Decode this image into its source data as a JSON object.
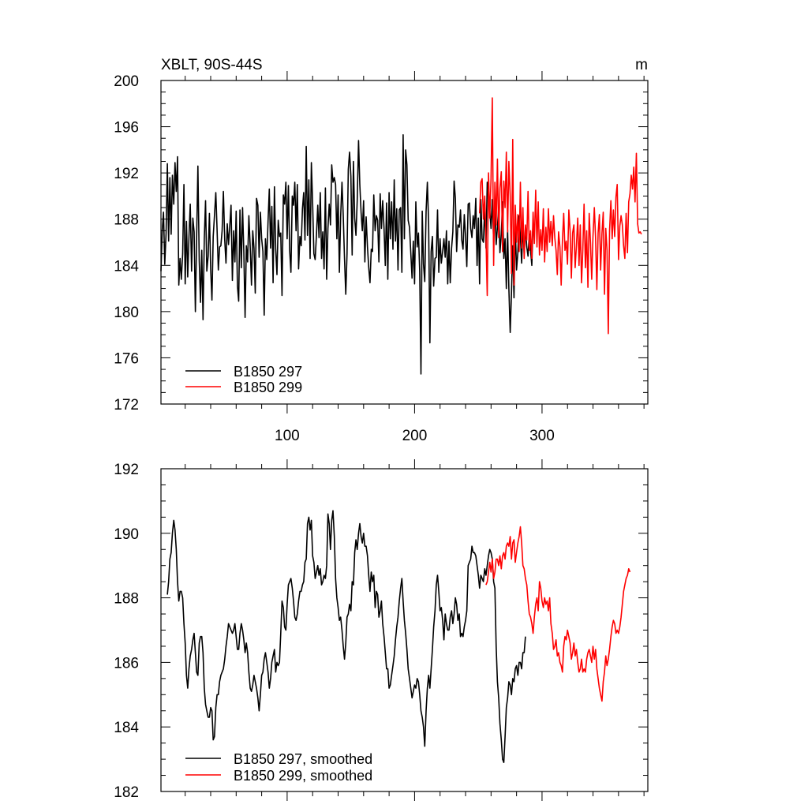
{
  "chart_data": [
    {
      "type": "line",
      "title": "XBLT, 90S-44S",
      "units": "m",
      "xlim": [
        1,
        383
      ],
      "ylim": [
        172,
        200
      ],
      "yticks": [
        172,
        176,
        180,
        184,
        188,
        192,
        196,
        200
      ],
      "xticks": [
        100,
        200,
        300
      ],
      "grid": false,
      "legend_position": "bottom-left",
      "series": [
        {
          "name": "B1850 297",
          "color": "#000000",
          "x_start": 1,
          "values": [
            183.5,
            187.0,
            188.6,
            184.1,
            186.8,
            192.8,
            186.1,
            191.6,
            186.7,
            191.8,
            189.3,
            192.9,
            190.4,
            193.4,
            182.3,
            184.6,
            182.8,
            185.0,
            191.0,
            182.4,
            187.8,
            183.0,
            186.5,
            189.3,
            183.5,
            188.1,
            186.9,
            180.0,
            186.4,
            192.6,
            184.4,
            180.8,
            185.3,
            179.3,
            186.3,
            189.6,
            183.5,
            184.8,
            188.5,
            183.7,
            181.0,
            186.5,
            188.3,
            190.3,
            187.1,
            183.6,
            185.6,
            185.7,
            187.0,
            190.4,
            186.2,
            184.2,
            187.6,
            185.8,
            187.4,
            189.2,
            182.7,
            187.0,
            184.3,
            188.7,
            182.2,
            180.9,
            188.8,
            183.8,
            189.0,
            185.2,
            179.5,
            185.7,
            184.3,
            188.3,
            185.6,
            182.3,
            187.0,
            185.5,
            181.6,
            189.8,
            189.2,
            184.7,
            188.6,
            186.3,
            185.2,
            179.7,
            186.3,
            184.5,
            187.8,
            190.6,
            185.5,
            189.1,
            182.5,
            190.8,
            185.4,
            183.2,
            187.9,
            186.5,
            186.8,
            181.4,
            190.1,
            189.3,
            191.2,
            186.3,
            190.9,
            185.3,
            183.4,
            190.0,
            189.2,
            191.2,
            187.0,
            191.0,
            183.7,
            186.5,
            185.7,
            188.9,
            190.3,
            186.2,
            194.3,
            186.6,
            191.4,
            184.6,
            192.9,
            189.4,
            185.0,
            184.5,
            186.7,
            189.2,
            186.4,
            190.3,
            184.6,
            186.9,
            183.7,
            190.7,
            182.8,
            187.2,
            189.3,
            187.5,
            192.7,
            191.2,
            191.6,
            191.0,
            186.3,
            190.1,
            183.4,
            188.2,
            191.2,
            188.3,
            184.6,
            181.5,
            185.0,
            192.3,
            193.8,
            191.7,
            184.9,
            193.0,
            188.1,
            186.6,
            189.6,
            194.8,
            191.0,
            188.6,
            187.0,
            189.6,
            184.3,
            188.2,
            185.6,
            183.8,
            182.5,
            185.4,
            185.2,
            190.1,
            187.0,
            188.3,
            187.9,
            184.3,
            190.2,
            187.2,
            189.6,
            187.2,
            184.0,
            189.4,
            182.8,
            190.3,
            186.3,
            189.5,
            185.4,
            191.4,
            186.1,
            188.9,
            183.6,
            188.8,
            189.0,
            183.4,
            195.3,
            186.3,
            194.0,
            192.7,
            187.9,
            187.3,
            185.1,
            182.9,
            186.1,
            182.4,
            189.5,
            185.6,
            186.8,
            183.5,
            174.6,
            188.7,
            184.1,
            182.6,
            188.7,
            191.2,
            187.7,
            177.3,
            185.2,
            186.5,
            182.2,
            184.6,
            184.7,
            188.8,
            183.4,
            186.3,
            184.2,
            185.2,
            186.3,
            184.7,
            187.0,
            182.4,
            186.1,
            182.5,
            185.5,
            186.9,
            191.3,
            189.8,
            185.2,
            187.5,
            187.3,
            188.8,
            186.2,
            185.4,
            188.4,
            186.5,
            183.9,
            189.3,
            189.4,
            187.2,
            186.4,
            188.3,
            187.2,
            189.8,
            184.0,
            188.1,
            182.4,
            189.7,
            186.3,
            186.0,
            189.0,
            185.5,
            191.2,
            190.6,
            188.8,
            187.2,
            189.7,
            186.0,
            188.9,
            185.8,
            187.3,
            189.0,
            185.1,
            186.7,
            189.5,
            184.6,
            186.3,
            182.0,
            187.1,
            182.0,
            178.2,
            181.6,
            185.7,
            181.2,
            187.4,
            183.6,
            185.1,
            188.3,
            186.5,
            184.2,
            187.5,
            185.0,
            187.3,
            185.6,
            184.8,
            186.7,
            185.3,
            184.0,
            188.0
          ]
        },
        {
          "name": "B1850 299",
          "color": "#ff0000",
          "x_start": 251,
          "values": [
            188.5,
            191.2,
            191.5,
            188.0,
            190.0,
            186.4,
            181.4,
            192.0,
            188.1,
            191.5,
            198.5,
            184.0,
            191.2,
            187.5,
            193.2,
            186.4,
            190.7,
            192.1,
            185.2,
            191.3,
            189.0,
            193.8,
            186.9,
            193.0,
            190.0,
            183.3,
            194.9,
            182.3,
            189.2,
            186.0,
            188.4,
            185.2,
            191.2,
            185.5,
            189.0,
            184.6,
            187.5,
            186.2,
            190.4,
            185.3,
            187.0,
            184.6,
            188.6,
            185.9,
            190.5,
            185.6,
            189.5,
            184.9,
            187.1,
            185.3,
            188.9,
            184.3,
            187.3,
            185.2,
            188.9,
            186.0,
            187.8,
            185.7,
            188.3,
            186.4,
            185.3,
            183.2,
            186.9,
            185.6,
            182.3,
            186.2,
            188.5,
            185.3,
            186.1,
            184.1,
            188.8,
            187.0,
            182.9,
            186.8,
            187.5,
            183.8,
            185.7,
            188.1,
            184.0,
            187.5,
            182.5,
            185.3,
            189.3,
            183.8,
            187.0,
            182.1,
            188.5,
            186.0,
            182.8,
            186.5,
            189.0,
            186.4,
            181.9,
            186.8,
            188.4,
            183.6,
            186.8,
            188.6,
            181.5,
            187.2,
            185.3,
            178.1,
            187.0,
            189.6,
            186.3,
            188.8,
            186.5,
            189.9,
            191.0,
            184.5,
            187.4,
            188.3,
            187.5,
            185.7,
            184.6,
            188.5,
            185.1,
            189.5,
            190.2,
            191.8,
            190.6,
            192.5,
            189.5,
            193.7,
            187.6,
            186.8,
            186.9,
            186.7
          ]
        }
      ]
    },
    {
      "type": "line",
      "title": "",
      "xlim": [
        1,
        383
      ],
      "ylim": [
        182,
        192
      ],
      "yticks": [
        182,
        184,
        186,
        188,
        190,
        192
      ],
      "grid": false,
      "legend_position": "bottom-left",
      "series": [
        {
          "name": "B1850 297, smoothed",
          "color": "#000000",
          "x_start": 6,
          "values": [
            188.1,
            188.5,
            189.2,
            189.4,
            190.0,
            190.4,
            190.1,
            189.5,
            188.5,
            187.9,
            188.2,
            188.2,
            188.0,
            187.2,
            186.6,
            185.6,
            185.2,
            185.8,
            186.2,
            186.4,
            186.7,
            186.9,
            186.3,
            185.7,
            185.6,
            186.6,
            186.8,
            186.8,
            186.3,
            185.2,
            184.7,
            184.5,
            184.3,
            184.3,
            184.6,
            184.5,
            183.6,
            183.7,
            184.6,
            185.0,
            185.0,
            185.4,
            185.6,
            185.7,
            185.8,
            186.1,
            186.5,
            186.8,
            187.2,
            187.1,
            187.0,
            186.9,
            187.0,
            187.2,
            186.8,
            186.4,
            186.4,
            186.9,
            187.2,
            187.0,
            186.7,
            186.3,
            186.6,
            186.3,
            185.7,
            185.2,
            185.1,
            185.3,
            185.6,
            185.4,
            185.2,
            184.9,
            184.5,
            185.0,
            185.6,
            185.7,
            186.1,
            186.3,
            186.0,
            185.7,
            185.2,
            185.5,
            186.0,
            186.2,
            186.4,
            185.7,
            186.0,
            185.9,
            186.0,
            186.9,
            187.9,
            187.7,
            187.1,
            187.0,
            187.8,
            188.4,
            188.5,
            188.6,
            188.3,
            187.9,
            187.4,
            187.3,
            187.5,
            187.9,
            188.2,
            188.2,
            188.4,
            188.5,
            189.1,
            189.2,
            190.3,
            190.5,
            190.1,
            190.4,
            189.3,
            189.1,
            188.6,
            188.8,
            189.0,
            188.7,
            188.9,
            188.4,
            188.5,
            188.7,
            188.6,
            189.0,
            190.6,
            190.3,
            189.5,
            190.4,
            190.7,
            189.9,
            188.6,
            188.0,
            187.7,
            187.3,
            187.4,
            187.0,
            186.5,
            186.1,
            186.6,
            187.4,
            187.5,
            187.8,
            187.6,
            188.5,
            188.4,
            189.4,
            189.8,
            189.5,
            190.0,
            190.3,
            189.9,
            189.7,
            190.0,
            189.6,
            189.6,
            189.3,
            188.7,
            188.2,
            188.8,
            188.5,
            188.7,
            187.7,
            188.2,
            188.1,
            187.4,
            187.6,
            187.9,
            187.2,
            186.8,
            186.3,
            185.8,
            185.8,
            185.2,
            185.3,
            185.6,
            185.9,
            186.2,
            186.7,
            187.1,
            187.4,
            187.9,
            188.3,
            188.6,
            187.9,
            187.3,
            186.9,
            186.4,
            185.8,
            185.5,
            185.2,
            184.9,
            185.1,
            185.3,
            185.2,
            185.5,
            185.4,
            185.0,
            184.5,
            184.3,
            184.0,
            183.4,
            184.5,
            185.2,
            185.6,
            185.2,
            185.8,
            186.4,
            187.1,
            187.6,
            188.4,
            188.7,
            188.2,
            187.6,
            187.7,
            187.3,
            186.7,
            187.5,
            187.2,
            187.0,
            187.0,
            187.4,
            187.6,
            187.2,
            187.5,
            188.0,
            187.8,
            187.3,
            187.5,
            186.8,
            186.9,
            186.8,
            187.1,
            187.3,
            187.6,
            189.0,
            189.1,
            189.2,
            189.6,
            189.4,
            189.4,
            189.3,
            189.0,
            188.7,
            188.3,
            188.7,
            188.6,
            188.5,
            188.9,
            188.7,
            189.0,
            189.3,
            189.5,
            189.4,
            189.2,
            188.5,
            188.3,
            186.5,
            185.4,
            184.9,
            184.1,
            183.6,
            183.0,
            182.9,
            183.7,
            184.6,
            184.9,
            185.4,
            185.3,
            185.0,
            185.5,
            185.4,
            185.8,
            185.9,
            185.6,
            186.0,
            186.0,
            185.8,
            186.3,
            186.3,
            186.8
          ]
        },
        {
          "name": "B1850 299, smoothed",
          "color": "#ff0000",
          "x_start": 256,
          "values": [
            188.4,
            188.5,
            188.8,
            189.1,
            188.8,
            189.2,
            188.6,
            188.8,
            189.2,
            189.2,
            189.0,
            189.3,
            188.9,
            189.3,
            189.4,
            189.2,
            189.6,
            189.7,
            189.6,
            189.9,
            189.2,
            189.7,
            189.8,
            189.1,
            189.4,
            189.7,
            189.9,
            190.2,
            189.7,
            189.0,
            188.9,
            188.6,
            188.4,
            187.9,
            187.5,
            187.4,
            187.2,
            186.9,
            187.4,
            187.8,
            188.0,
            187.6,
            188.5,
            188.3,
            187.9,
            187.7,
            188.0,
            187.8,
            187.9,
            187.6,
            188.0,
            187.2,
            186.9,
            186.4,
            186.5,
            186.7,
            186.2,
            186.3,
            186.0,
            185.9,
            185.7,
            186.5,
            186.8,
            186.7,
            187.0,
            186.8,
            186.6,
            186.1,
            186.3,
            186.6,
            186.2,
            186.4,
            186.0,
            185.7,
            185.8,
            186.1,
            185.7,
            185.8,
            185.7,
            186.1,
            186.3,
            186.4,
            186.2,
            186.0,
            186.5,
            186.1,
            186.4,
            185.8,
            185.5,
            185.2,
            185.0,
            184.8,
            185.4,
            185.7,
            186.2,
            185.9,
            186.1,
            186.4,
            186.8,
            187.1,
            187.3,
            187.2,
            186.9,
            187.0,
            186.9,
            187.1,
            187.4,
            187.8,
            188.2,
            188.4,
            188.6,
            188.7,
            188.9,
            188.8
          ]
        }
      ]
    }
  ]
}
